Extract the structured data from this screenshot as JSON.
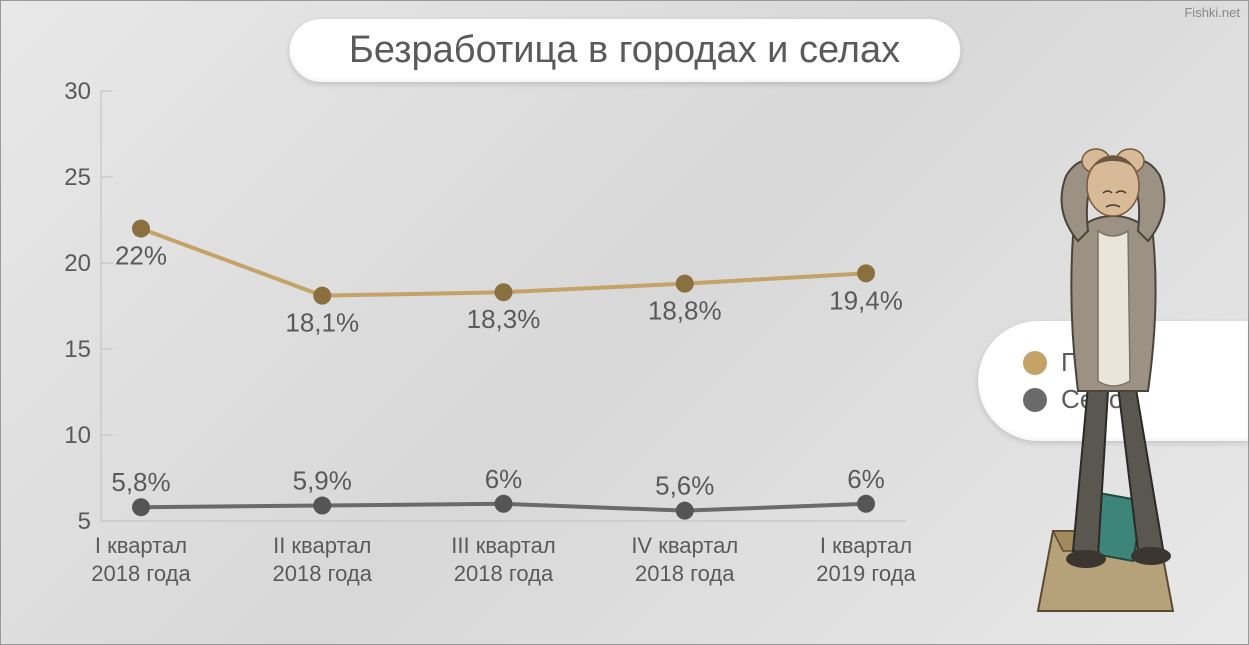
{
  "title": "Безработица в городах и селах",
  "title_fontsize": 38,
  "watermark": "Fishki.net",
  "chart": {
    "type": "line",
    "background": "transparent",
    "ylim": [
      5,
      30
    ],
    "yticks": [
      5,
      10,
      15,
      20,
      25,
      30
    ],
    "categories_line1": [
      "I квартал",
      "II квартал",
      "III квартал",
      "IV квартал",
      "I квартал"
    ],
    "categories_line2": [
      "2018 года",
      "2018 года",
      "2018 года",
      "2018 года",
      "2019 года"
    ],
    "grid_color": "#bfbfbf",
    "text_color": "#5a5a5a",
    "dot_radius": 9,
    "line_width": 4,
    "label_fontsize": 26,
    "axis_fontsize": 24,
    "xlabel_fontsize": 22,
    "series": [
      {
        "key": "city",
        "name": "Город",
        "color": "#c4a268",
        "dot_color": "#8a6f3f",
        "values": [
          22,
          18.1,
          18.3,
          18.8,
          19.4
        ],
        "labels": [
          "22%",
          "18,1%",
          "18,3%",
          "18,8%",
          "19,4%"
        ]
      },
      {
        "key": "village",
        "name": "Село",
        "color": "#6a6a6a",
        "dot_color": "#555555",
        "values": [
          5.8,
          5.9,
          6,
          5.6,
          6
        ],
        "labels": [
          "5,8%",
          "5,9%",
          "6%",
          "5,6%",
          "6%"
        ]
      }
    ]
  },
  "legend": {
    "items": [
      {
        "label": "Город",
        "color": "#c4a268"
      },
      {
        "label": "Село",
        "color": "#6a6a6a"
      }
    ]
  },
  "figure_colors": {
    "jacket": "#9c9284",
    "shirt": "#eae5da",
    "pants": "#5a5650",
    "skin": "#d8b998",
    "hair": "#6b5844",
    "box": "#b6a27a",
    "folder": "#3d8578"
  }
}
